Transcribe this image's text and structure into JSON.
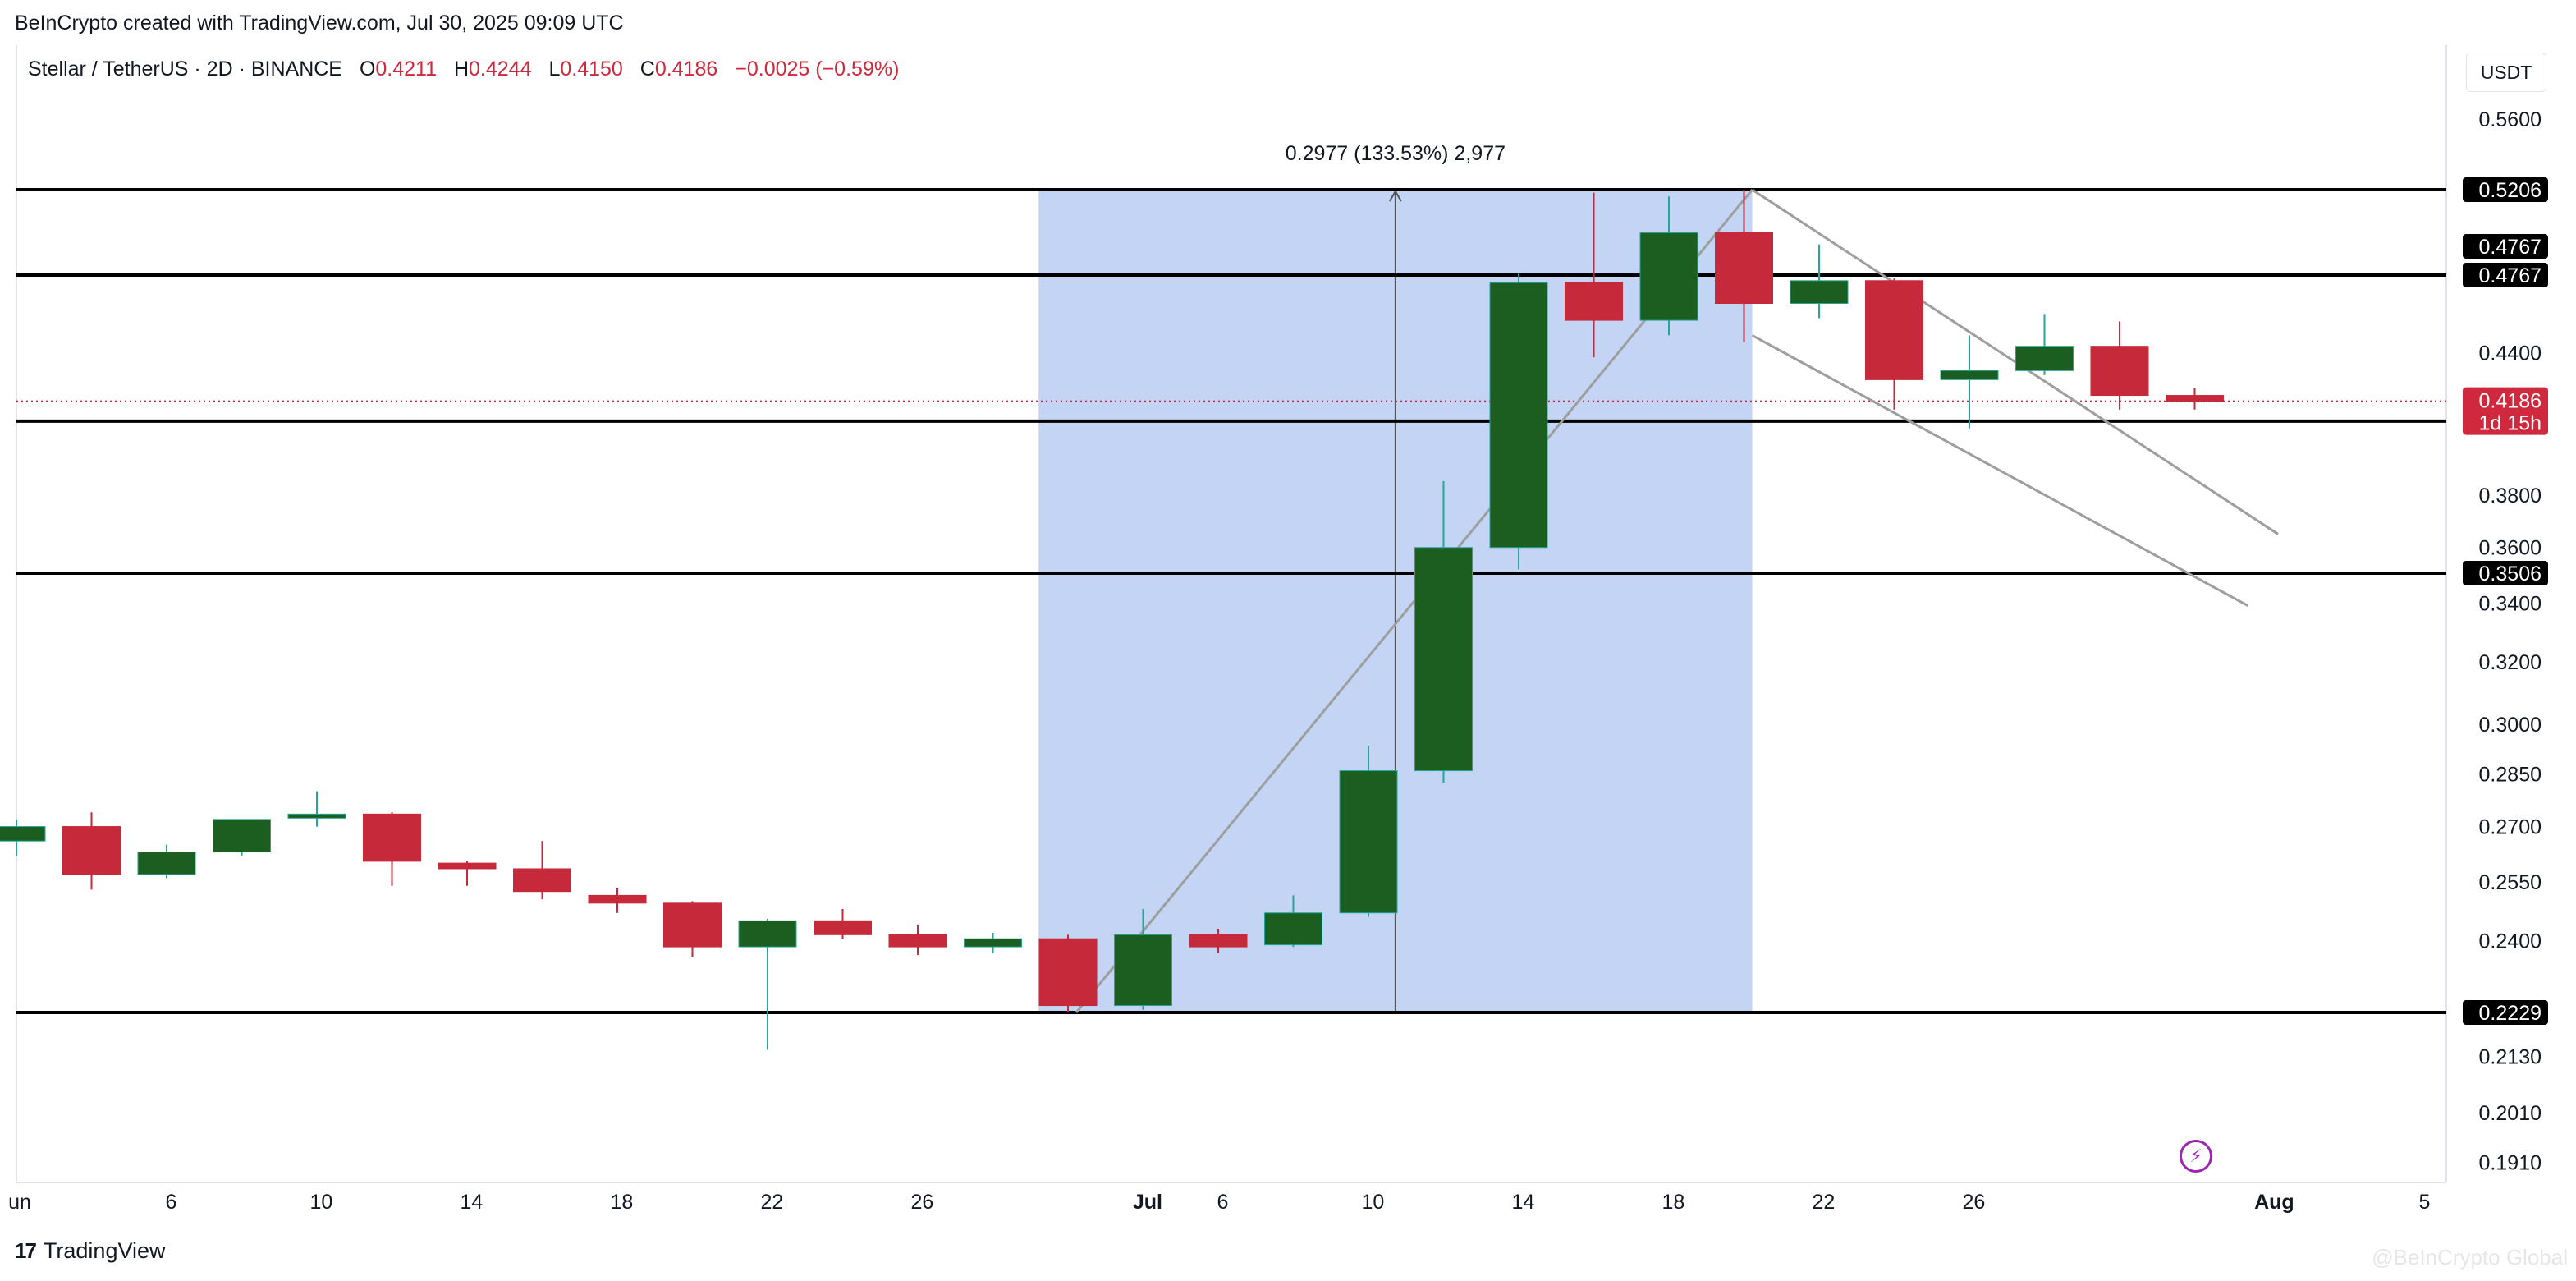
{
  "header": {
    "credit": "BeInCrypto created with TradingView.com, Jul 30, 2025 09:09 UTC",
    "symbol": "Stellar / TetherUS · 2D · BINANCE",
    "ohlc": {
      "o_label": "O",
      "o": "0.4211",
      "h_label": "H",
      "h": "0.4244",
      "l_label": "L",
      "l": "0.4150",
      "c_label": "C",
      "c": "0.4186",
      "change": "−0.0025 (−0.59%)"
    },
    "currency": "USDT"
  },
  "footer": {
    "brand": "TradingView",
    "watermark": "@BeInCrypto Global"
  },
  "colors": {
    "up": "#1b5e20",
    "up_wick": "#26a69a",
    "down": "#c62a3a",
    "range_fill": "#c3d4f5",
    "line": "#000000",
    "trend": "#9e9e9e"
  },
  "chart_data": {
    "type": "candlestick",
    "x_axis_labels": [
      "un",
      "6",
      "10",
      "14",
      "18",
      "22",
      "26",
      "Jul",
      "6",
      "10",
      "14",
      "18",
      "22",
      "26",
      "Aug",
      "5"
    ],
    "y_axis_labels": [
      "0.5600",
      "0.4400",
      "0.3800",
      "0.3600",
      "0.3400",
      "0.3200",
      "0.3000",
      "0.2850",
      "0.2700",
      "0.2550",
      "0.2400",
      "0.2130",
      "0.2010",
      "0.1910"
    ],
    "y_scale": "log",
    "candles": [
      {
        "o": 0.266,
        "h": 0.272,
        "l": 0.262,
        "c": 0.27
      },
      {
        "o": 0.27,
        "h": 0.274,
        "l": 0.253,
        "c": 0.257
      },
      {
        "o": 0.257,
        "h": 0.265,
        "l": 0.256,
        "c": 0.263
      },
      {
        "o": 0.263,
        "h": 0.272,
        "l": 0.262,
        "c": 0.272
      },
      {
        "o": 0.2725,
        "h": 0.28,
        "l": 0.27,
        "c": 0.2735
      },
      {
        "o": 0.2735,
        "h": 0.274,
        "l": 0.254,
        "c": 0.2605
      },
      {
        "o": 0.26,
        "h": 0.2605,
        "l": 0.254,
        "c": 0.2585
      },
      {
        "o": 0.2585,
        "h": 0.266,
        "l": 0.2505,
        "c": 0.2525
      },
      {
        "o": 0.2515,
        "h": 0.2535,
        "l": 0.247,
        "c": 0.2495
      },
      {
        "o": 0.2495,
        "h": 0.25,
        "l": 0.236,
        "c": 0.2385
      },
      {
        "o": 0.2385,
        "h": 0.2455,
        "l": 0.2145,
        "c": 0.245
      },
      {
        "o": 0.245,
        "h": 0.248,
        "l": 0.2405,
        "c": 0.2415
      },
      {
        "o": 0.2415,
        "h": 0.244,
        "l": 0.2365,
        "c": 0.2385
      },
      {
        "o": 0.2385,
        "h": 0.242,
        "l": 0.237,
        "c": 0.2405
      },
      {
        "o": 0.2405,
        "h": 0.2415,
        "l": 0.2229,
        "c": 0.2245
      },
      {
        "o": 0.2245,
        "h": 0.248,
        "l": 0.2235,
        "c": 0.2415
      },
      {
        "o": 0.2415,
        "h": 0.243,
        "l": 0.237,
        "c": 0.2385
      },
      {
        "o": 0.239,
        "h": 0.2515,
        "l": 0.2385,
        "c": 0.247
      },
      {
        "o": 0.247,
        "h": 0.2935,
        "l": 0.246,
        "c": 0.286
      },
      {
        "o": 0.286,
        "h": 0.3855,
        "l": 0.2825,
        "c": 0.36
      },
      {
        "o": 0.36,
        "h": 0.4775,
        "l": 0.352,
        "c": 0.473
      },
      {
        "o": 0.473,
        "h": 0.519,
        "l": 0.438,
        "c": 0.455
      },
      {
        "o": 0.455,
        "h": 0.517,
        "l": 0.448,
        "c": 0.498
      },
      {
        "o": 0.498,
        "h": 0.5206,
        "l": 0.445,
        "c": 0.463
      },
      {
        "o": 0.463,
        "h": 0.492,
        "l": 0.456,
        "c": 0.474
      },
      {
        "o": 0.474,
        "h": 0.475,
        "l": 0.415,
        "c": 0.428
      },
      {
        "o": 0.428,
        "h": 0.448,
        "l": 0.407,
        "c": 0.432
      },
      {
        "o": 0.432,
        "h": 0.458,
        "l": 0.43,
        "c": 0.443
      },
      {
        "o": 0.443,
        "h": 0.4545,
        "l": 0.415,
        "c": 0.4211
      },
      {
        "o": 0.4211,
        "h": 0.4244,
        "l": 0.415,
        "c": 0.4186
      }
    ],
    "horizontal_levels": [
      {
        "value": 0.5206,
        "label": "0.5206"
      },
      {
        "value": 0.4767,
        "label": "0.4767"
      },
      {
        "value": 0.4101,
        "label": "0.4101"
      },
      {
        "value": 0.3506,
        "label": "0.3506"
      },
      {
        "value": 0.2229,
        "label": "0.2229"
      }
    ],
    "extra_level_label": "0.4767",
    "current_price": {
      "value": 0.4186,
      "label": "0.4186",
      "countdown": "1d 15h"
    },
    "measure_tool": {
      "label": "0.2977 (133.53%) 2,977",
      "from_index": 14,
      "to_index": 23,
      "low": 0.2229,
      "high": 0.5206
    },
    "trendlines": [
      {
        "start_index": 14,
        "start_value": 0.2229,
        "end_index": 23,
        "end_value": 0.5206
      },
      {
        "start_index": 23,
        "start_value": 0.5206,
        "end_index": 30,
        "end_value": 0.365
      },
      {
        "start_index": 23,
        "start_value": 0.448,
        "end_index": 29.6,
        "end_value": 0.339
      }
    ]
  }
}
